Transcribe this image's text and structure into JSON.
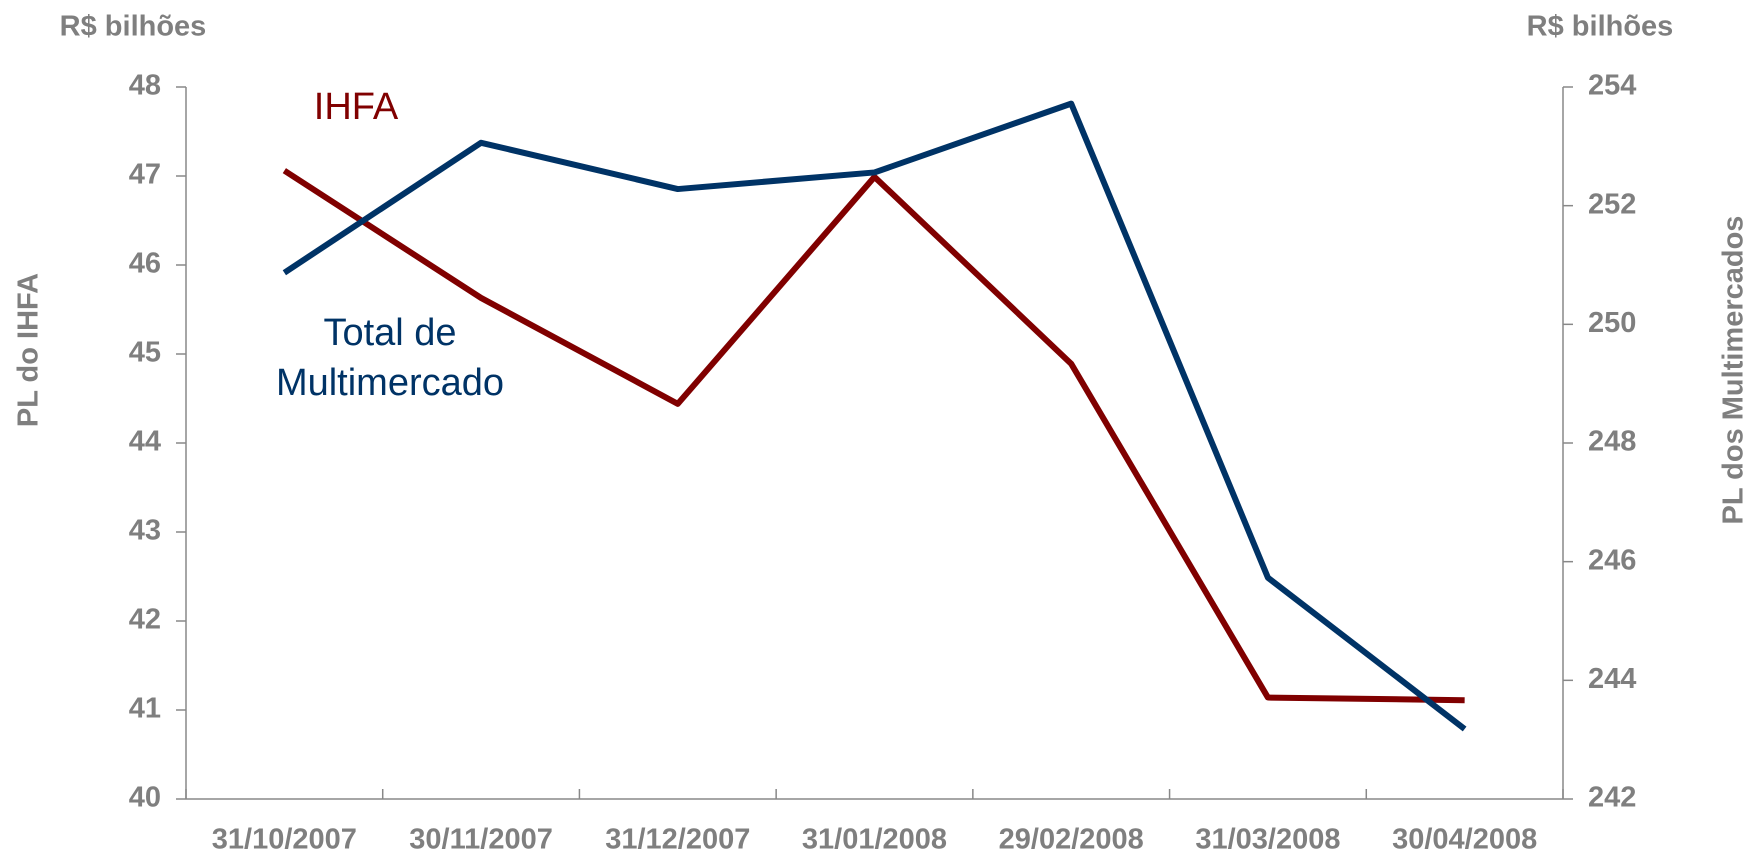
{
  "chart_data": {
    "type": "line",
    "categories": [
      "31/10/2007",
      "30/11/2007",
      "31/12/2007",
      "31/01/2008",
      "29/02/2008",
      "31/03/2008",
      "30/04/2008"
    ],
    "series": [
      {
        "name": "IHFA",
        "color": "#800000",
        "values": [
          47.06,
          45.63,
          44.44,
          46.99,
          44.89,
          41.14,
          41.11
        ]
      },
      {
        "name": "Total de Multimercado",
        "color": "#003366",
        "axis": "y2",
        "values": [
          250.87,
          253.06,
          252.28,
          252.56,
          253.72,
          245.73,
          243.18
        ]
      }
    ],
    "ylim": [
      40,
      48
    ],
    "yticks": [
      40,
      41,
      42,
      43,
      44,
      45,
      46,
      47,
      48
    ],
    "y2lim": [
      242,
      254
    ],
    "y2ticks": [
      242,
      244,
      246,
      248,
      250,
      252,
      254
    ],
    "ylabel": "PL do IHFA",
    "y2label": "PL dos Multimercados",
    "yunit": "R$ bilhões",
    "y2unit": "R$ bilhões"
  }
}
